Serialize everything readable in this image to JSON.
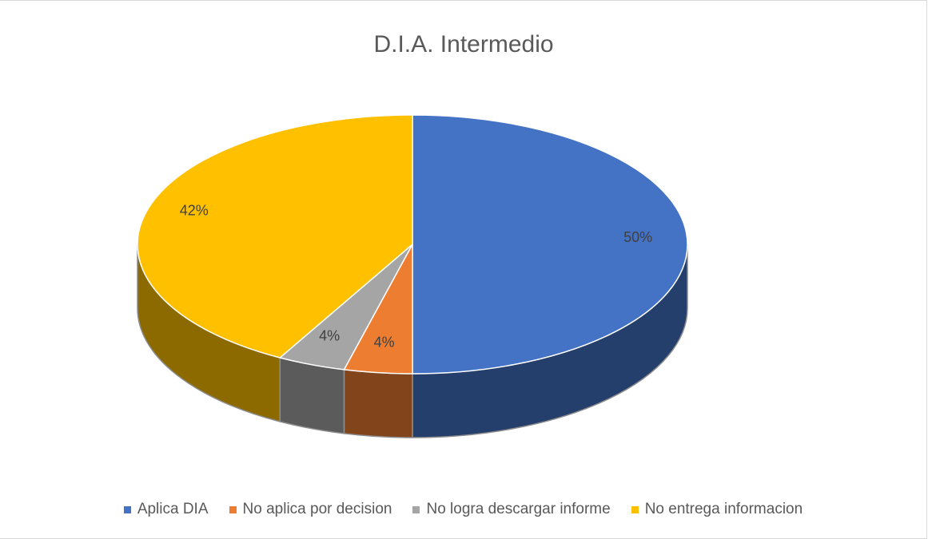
{
  "chart_data": {
    "type": "pie",
    "title": "D.I.A. Intermedio",
    "categories": [
      "Aplica DIA",
      "No aplica por decision",
      "No logra descargar informe",
      "No entrega informacion"
    ],
    "values": [
      50,
      4,
      4,
      42
    ],
    "value_labels": [
      "50%",
      "4%",
      "4%",
      "42%"
    ],
    "colors": [
      "#4472c4",
      "#ed7d31",
      "#a5a5a5",
      "#ffc000"
    ],
    "legend": "bottom"
  }
}
